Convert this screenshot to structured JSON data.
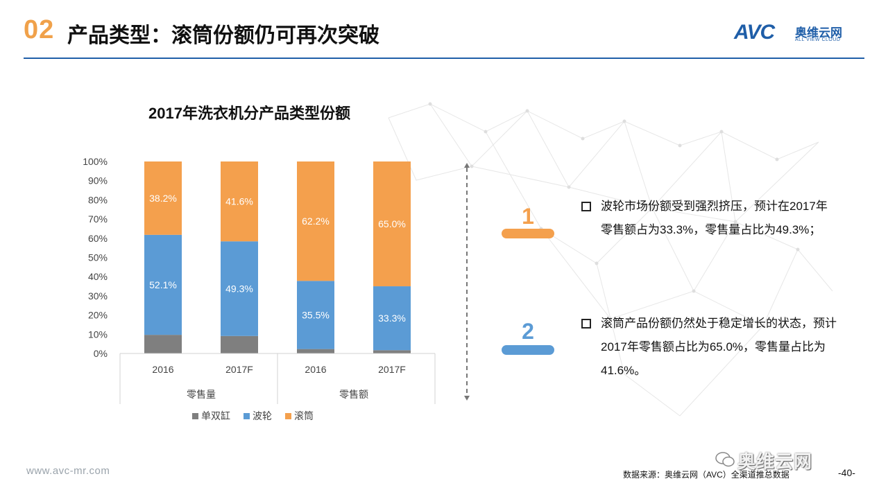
{
  "header": {
    "number": "02",
    "title": "产品类型：滚筒份额仍可再次突破",
    "logo": {
      "brand": "AVC",
      "cn": "奥维云网",
      "en": "ALL VIEW CLOUD"
    }
  },
  "chart_data": {
    "type": "bar",
    "stacked": true,
    "title": "2017年洗衣机分产品类型份额",
    "categories": [
      "2016",
      "2017F",
      "2016",
      "2017F"
    ],
    "groups": [
      {
        "label": "零售量",
        "categories": [
          "2016",
          "2017F"
        ]
      },
      {
        "label": "零售额",
        "categories": [
          "2016",
          "2017F"
        ]
      }
    ],
    "series": [
      {
        "name": "单双缸",
        "color": "#7f7f7f",
        "values": [
          9.7,
          9.1,
          2.3,
          1.7
        ]
      },
      {
        "name": "波轮",
        "color": "#5b9bd5",
        "values": [
          52.1,
          49.3,
          35.5,
          33.3
        ]
      },
      {
        "name": "滚筒",
        "color": "#f4a04d",
        "values": [
          38.2,
          41.6,
          62.2,
          65.0
        ]
      }
    ],
    "data_labels": [
      {
        "series": "波轮",
        "labels": [
          "52.1%",
          "49.3%",
          "35.5%",
          "33.3%"
        ]
      },
      {
        "series": "滚筒",
        "labels": [
          "38.2%",
          "41.6%",
          "62.2%",
          "65.0%"
        ]
      }
    ],
    "y_ticks": [
      "0%",
      "10%",
      "20%",
      "30%",
      "40%",
      "50%",
      "60%",
      "70%",
      "80%",
      "90%",
      "100%"
    ],
    "ylim": [
      0,
      100
    ],
    "legend_position": "bottom",
    "grid": false
  },
  "points": [
    {
      "number": "1",
      "color": "#f4a04d",
      "text": "波轮市场份额受到强烈挤压，预计在2017年零售额占为33.3%，零售量占比为49.3%；"
    },
    {
      "number": "2",
      "color": "#5b9bd5",
      "text": "滚筒产品份额仍然处于稳定增长的状态，预计2017年零售额占比为65.0%，零售量占比为41.6%。"
    }
  ],
  "footer": {
    "url": "www.avc-mr.com",
    "source": "数据来源：奥维云网（AVC）全渠道推总数据",
    "page": "-40-",
    "watermark": "奥维云网"
  }
}
